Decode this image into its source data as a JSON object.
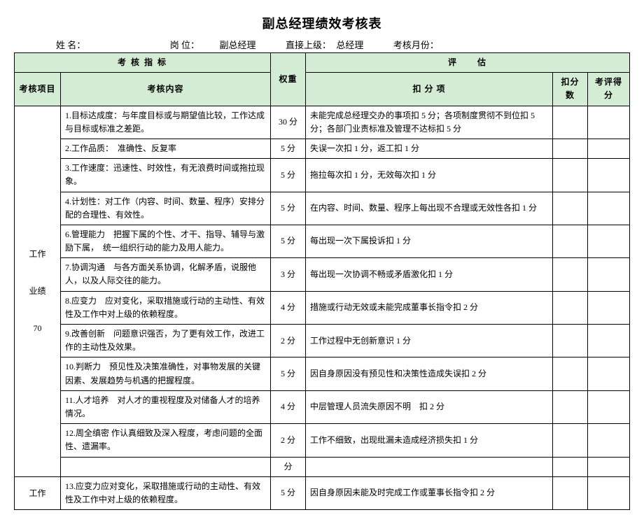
{
  "title": "副总经理绩效考核表",
  "info": {
    "name_label": "姓 名：",
    "post_label": "岗 位：",
    "post_value": "副总经理",
    "superior_label": "直接上级：",
    "superior_value": "总经理",
    "month_label": "考核月份："
  },
  "headers": {
    "indicator": "考 核 指 标",
    "weight": "权重",
    "eval": "评　　估",
    "project": "考核项目",
    "content": "考核内容",
    "deduct_item": "扣 分 项",
    "deduct_score": "扣分数",
    "eval_score": "考评得分"
  },
  "section1": {
    "label_l1": "工作",
    "label_l2": "业绩",
    "label_l3": "70"
  },
  "rows": [
    {
      "content": "1.目标达成度：与年度目标或与期望值比较，工作达成与目标或标准之差距。",
      "weight": "30 分",
      "deduct": "未能完成总经理交办的事项扣 5 分；各项制度贯彻不到位扣 5 分；各部门业责标准及管理不达标扣 5 分"
    },
    {
      "content": "2.工作品质：　准确性、反复率",
      "weight": "5 分",
      "deduct": "失误一次扣 1 分，返工扣 1 分"
    },
    {
      "content": "3.工作速度：迅速性、时效性，有无浪费时间或拖拉现象。",
      "weight": "5 分",
      "deduct": "拖拉每次扣 1 分，无效每次扣 1 分"
    },
    {
      "content": "4.计划性：对工作（内容、时间、数量、程序）安排分配的合理性、有效性。",
      "weight": "5 分",
      "deduct": "在内容、时间、数量、程序上每出现不合理或无效性各扣 1 分"
    },
    {
      "content": "6.管理能力　把握下属的个性、才干、指导、辅导与激励下属，　统一组织行动的能力及用人能力。",
      "weight": "5 分",
      "deduct": "每出现一次下属投诉扣 1 分"
    },
    {
      "content": "7.协调沟通　与各方面关系协调，化解矛盾，说服他人，以及人际交往的能力。",
      "weight": "3 分",
      "deduct": "每出现一次协调不畅或矛盾激化扣 1 分"
    },
    {
      "content": "8.应变力　应对变化，采取措施或行动的主动性、有效性及工作中对上级的依赖程度。",
      "weight": "4 分",
      "deduct": "措施或行动无效或未能完成董事长指令扣 2 分"
    },
    {
      "content": "9.改善创新　问题意识强否，为了更有效工作，改进工作的主动性及效果。",
      "weight": "2 分",
      "deduct": "工作过程中无创新意识 1 分"
    },
    {
      "content": "10.判断力　预见性及决策准确性，对事物发展的关键因素、发展趋势与机遇的把握程度。",
      "weight": "5 分",
      "deduct": "因自身原因没有预见性和决策性造成失误扣 2 分"
    },
    {
      "content": "11.人才培养　对人才的重视程度及对储备人才的培养情况。",
      "weight": "4 分",
      "deduct": "中层管理人员流失原因不明　扣 2 分"
    },
    {
      "content": "12.周全缜密 作认真细致及深入程度，考虑问题的全面性、遗漏率。",
      "weight": "2 分",
      "deduct": "工作不细致，出现纰漏未造成经济损失扣 1 分"
    }
  ],
  "gap_weight": "分",
  "section2": {
    "label": "工作",
    "row": {
      "content": "13.应变力应对变化，采取措施或行动的主动性、有效性及工作中对上级的依赖程度。",
      "weight": "5 分",
      "deduct": "因自身原因未能及时完成工作或董事长指令扣 2 分"
    }
  },
  "colors": {
    "header_bg": "#d4ebd4",
    "border": "#000000",
    "text": "#000000",
    "page_bg": "#ffffff"
  }
}
